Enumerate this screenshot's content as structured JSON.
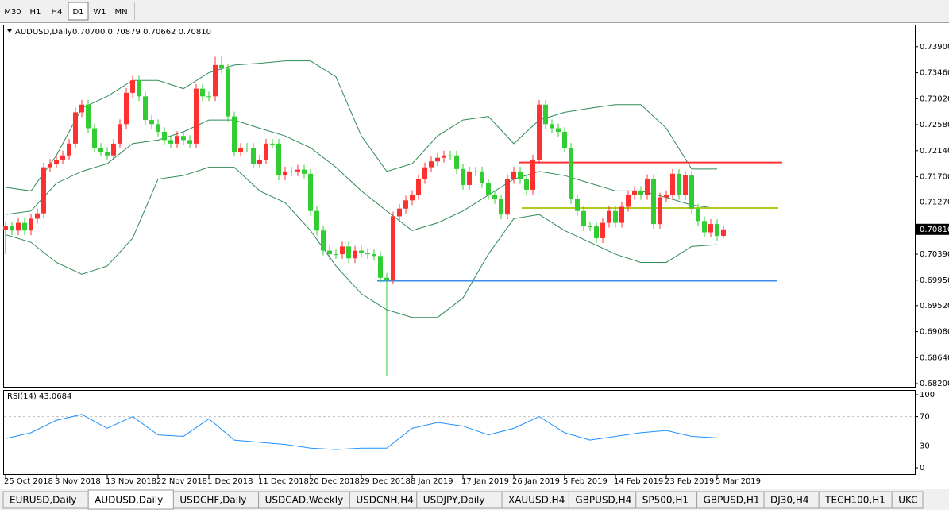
{
  "toolbar": {
    "timeframes": [
      "M30",
      "H1",
      "H4",
      "D1",
      "W1",
      "MN"
    ],
    "active_timeframe": 3
  },
  "chart_data": {
    "type": "candlestick",
    "symbol": "AUDUSD,Daily",
    "ohlc_text": "0.70700 0.70879 0.70662 0.70810",
    "bull_color": "#ff3030",
    "bear_color": "#32cd32",
    "open": [
      0.708,
      0.7086,
      0.7079,
      0.7092,
      0.7079,
      0.7099,
      0.7108,
      0.7186,
      0.7192,
      0.7199,
      0.7206,
      0.7226,
      0.7279,
      0.7292,
      0.7252,
      0.7219,
      0.7212,
      0.7206,
      0.7226,
      0.7259,
      0.7312,
      0.7333,
      0.7306,
      0.7266,
      0.7259,
      0.7246,
      0.7232,
      0.7226,
      0.7239,
      0.7232,
      0.7226,
      0.7319,
      0.7306,
      0.7306,
      0.7359,
      0.7353,
      0.7272,
      0.7212,
      0.7219,
      0.7219,
      0.7192,
      0.7199,
      0.7226,
      0.7226,
      0.7172,
      0.7179,
      0.7179,
      0.7182,
      0.7175,
      0.7112,
      0.7079,
      0.7045,
      0.7039,
      0.7039,
      0.7052,
      0.7032,
      0.7045,
      0.7041,
      0.7039,
      0.7036,
      0.6999,
      0.6996,
      0.7103,
      0.7116,
      0.713,
      0.7139,
      0.7166,
      0.7186,
      0.7196,
      0.7202,
      0.7206,
      0.7206,
      0.7183,
      0.7156,
      0.7179,
      0.7179,
      0.7159,
      0.7139,
      0.7132,
      0.7106,
      0.7166,
      0.7179,
      0.7166,
      0.7148,
      0.7199,
      0.7292,
      0.7259,
      0.7252,
      0.7246,
      0.7219,
      0.7132,
      0.7112,
      0.7086,
      0.7086,
      0.7066,
      0.7092,
      0.7112,
      0.7092,
      0.7119,
      0.7139,
      0.7146,
      0.7139,
      0.7166,
      0.709,
      0.7135,
      0.7139,
      0.7175,
      0.7139,
      0.7172,
      0.7116,
      0.7095,
      0.7076,
      0.709,
      0.707
    ],
    "high": [
      0.7094,
      0.7094,
      0.71,
      0.71,
      0.7107,
      0.7116,
      0.7194,
      0.72,
      0.7207,
      0.7214,
      0.7234,
      0.7287,
      0.73,
      0.73,
      0.726,
      0.7227,
      0.722,
      0.7234,
      0.7267,
      0.732,
      0.7341,
      0.7341,
      0.7314,
      0.7274,
      0.7267,
      0.7254,
      0.724,
      0.7247,
      0.7247,
      0.724,
      0.7327,
      0.7327,
      0.7314,
      0.7373,
      0.7373,
      0.7361,
      0.728,
      0.7227,
      0.7227,
      0.7227,
      0.7207,
      0.7234,
      0.7234,
      0.7234,
      0.7187,
      0.7187,
      0.719,
      0.719,
      0.7183,
      0.712,
      0.7087,
      0.7053,
      0.7047,
      0.706,
      0.706,
      0.7053,
      0.7053,
      0.7049,
      0.7047,
      0.7044,
      0.7007,
      0.7111,
      0.7124,
      0.7138,
      0.7147,
      0.7174,
      0.7194,
      0.7204,
      0.721,
      0.7214,
      0.7214,
      0.7214,
      0.7191,
      0.7187,
      0.7187,
      0.7187,
      0.7167,
      0.7147,
      0.714,
      0.7174,
      0.7187,
      0.7187,
      0.7174,
      0.7207,
      0.73,
      0.73,
      0.7267,
      0.726,
      0.7254,
      0.7227,
      0.714,
      0.712,
      0.7094,
      0.7094,
      0.71,
      0.712,
      0.712,
      0.7127,
      0.7147,
      0.7154,
      0.7154,
      0.7174,
      0.7174,
      0.7143,
      0.7147,
      0.7183,
      0.7183,
      0.718,
      0.718,
      0.7124,
      0.7103,
      0.7098,
      0.7098,
      0.7088
    ],
    "low": [
      0.7039,
      0.7071,
      0.7071,
      0.7071,
      0.7071,
      0.7091,
      0.71,
      0.7178,
      0.7184,
      0.7191,
      0.7198,
      0.7218,
      0.7271,
      0.7244,
      0.7211,
      0.7204,
      0.7198,
      0.7198,
      0.7218,
      0.7251,
      0.7304,
      0.7298,
      0.7258,
      0.7251,
      0.7238,
      0.7224,
      0.7218,
      0.7218,
      0.7224,
      0.7218,
      0.7218,
      0.7298,
      0.7298,
      0.7298,
      0.7345,
      0.7264,
      0.7204,
      0.7204,
      0.7211,
      0.7184,
      0.7184,
      0.7191,
      0.7218,
      0.7164,
      0.7164,
      0.7171,
      0.7171,
      0.7167,
      0.7104,
      0.7071,
      0.7037,
      0.7031,
      0.7031,
      0.7031,
      0.7024,
      0.7024,
      0.7033,
      0.7031,
      0.7028,
      0.6991,
      0.6832,
      0.6988,
      0.7095,
      0.7108,
      0.7122,
      0.7131,
      0.7158,
      0.7178,
      0.7188,
      0.7194,
      0.7198,
      0.7175,
      0.7148,
      0.7148,
      0.7171,
      0.7151,
      0.7131,
      0.7124,
      0.7098,
      0.7098,
      0.7158,
      0.7158,
      0.714,
      0.714,
      0.7191,
      0.7251,
      0.7244,
      0.7238,
      0.7211,
      0.7124,
      0.7104,
      0.7078,
      0.7078,
      0.7058,
      0.7058,
      0.7084,
      0.7084,
      0.7084,
      0.7111,
      0.7131,
      0.7131,
      0.7131,
      0.7082,
      0.7082,
      0.7127,
      0.7131,
      0.7131,
      0.7131,
      0.7108,
      0.7087,
      0.7068,
      0.7068,
      0.7062,
      0.7066
    ],
    "close": [
      0.7086,
      0.7079,
      0.7092,
      0.7079,
      0.7099,
      0.7108,
      0.7186,
      0.7192,
      0.7199,
      0.7206,
      0.7226,
      0.7279,
      0.7292,
      0.7252,
      0.7219,
      0.7212,
      0.7206,
      0.7226,
      0.7259,
      0.7312,
      0.7333,
      0.7306,
      0.7266,
      0.7259,
      0.7246,
      0.7232,
      0.7226,
      0.7239,
      0.7232,
      0.7226,
      0.7319,
      0.7306,
      0.7306,
      0.7359,
      0.7353,
      0.7272,
      0.7212,
      0.7219,
      0.7219,
      0.7192,
      0.7199,
      0.7226,
      0.7226,
      0.7172,
      0.7179,
      0.7179,
      0.7182,
      0.7175,
      0.7112,
      0.7079,
      0.7045,
      0.7039,
      0.7039,
      0.7052,
      0.7032,
      0.7045,
      0.7041,
      0.7039,
      0.7036,
      0.6999,
      0.6996,
      0.7103,
      0.7116,
      0.713,
      0.7139,
      0.7166,
      0.7186,
      0.7196,
      0.7202,
      0.7206,
      0.7206,
      0.7183,
      0.7156,
      0.7179,
      0.7179,
      0.7159,
      0.7139,
      0.7132,
      0.7106,
      0.7166,
      0.7179,
      0.7166,
      0.7148,
      0.7199,
      0.7292,
      0.7259,
      0.7252,
      0.7246,
      0.7219,
      0.7132,
      0.7112,
      0.7086,
      0.7086,
      0.7066,
      0.7092,
      0.7112,
      0.7092,
      0.7119,
      0.7139,
      0.7146,
      0.7139,
      0.7166,
      0.709,
      0.7135,
      0.7139,
      0.7175,
      0.7139,
      0.7172,
      0.7116,
      0.7095,
      0.7076,
      0.709,
      0.707,
      0.7081
    ],
    "bollinger": {
      "color": "#2e8b57",
      "x": [
        0,
        4,
        8,
        12,
        16,
        20,
        24,
        28,
        32,
        36,
        40,
        44,
        48,
        52,
        56,
        60,
        64,
        68,
        72,
        76,
        80,
        84,
        88,
        92,
        96,
        100,
        104,
        108,
        112
      ],
      "upper": [
        0.7152,
        0.7146,
        0.7206,
        0.7286,
        0.7306,
        0.7333,
        0.7333,
        0.7319,
        0.7346,
        0.7359,
        0.7362,
        0.7366,
        0.7366,
        0.7339,
        0.7239,
        0.7179,
        0.7192,
        0.7239,
        0.7266,
        0.7272,
        0.7226,
        0.7266,
        0.7279,
        0.7286,
        0.7292,
        0.7292,
        0.7252,
        0.7183,
        0.7183
      ],
      "middle": [
        0.7106,
        0.7112,
        0.7159,
        0.7179,
        0.7192,
        0.7226,
        0.7232,
        0.7246,
        0.7266,
        0.7266,
        0.7252,
        0.7239,
        0.7219,
        0.7186,
        0.7146,
        0.7112,
        0.7079,
        0.7092,
        0.7112,
        0.7139,
        0.7166,
        0.7179,
        0.7172,
        0.7159,
        0.7146,
        0.7146,
        0.7135,
        0.7122,
        0.7116
      ],
      "lower": [
        0.7072,
        0.7059,
        0.7025,
        0.7005,
        0.7019,
        0.7066,
        0.7166,
        0.7172,
        0.7186,
        0.7186,
        0.7146,
        0.7126,
        0.7079,
        0.7019,
        0.6972,
        0.6945,
        0.6932,
        0.6932,
        0.6965,
        0.7039,
        0.7099,
        0.7106,
        0.7079,
        0.7059,
        0.7039,
        0.7025,
        0.7025,
        0.7052,
        0.7055
      ]
    },
    "levels": [
      {
        "value": 0.7194,
        "color": "#ff3333"
      },
      {
        "value": 0.7117,
        "color": "#b5c820"
      },
      {
        "value": 0.6994,
        "color": "#3a8ee6"
      }
    ],
    "ylim": [
      0.68147,
      0.7426
    ],
    "yticks": [
      {
        "value": 0.739,
        "label": "0.73900"
      },
      {
        "value": 0.7346,
        "label": "0.73460"
      },
      {
        "value": 0.7302,
        "label": "0.73020"
      },
      {
        "value": 0.7258,
        "label": "0.72580"
      },
      {
        "value": 0.7214,
        "label": "0.72140"
      },
      {
        "value": 0.717,
        "label": "0.71700"
      },
      {
        "value": 0.7127,
        "label": "0.71270"
      },
      {
        "value": 0.7039,
        "label": "0.70390"
      },
      {
        "value": 0.6995,
        "label": "0.69950"
      },
      {
        "value": 0.6952,
        "label": "0.69520"
      },
      {
        "value": 0.6908,
        "label": "0.69080"
      },
      {
        "value": 0.6864,
        "label": "0.68640"
      },
      {
        "value": 0.682,
        "label": "0.68200"
      }
    ],
    "current_price": {
      "value": 0.7081,
      "label": "0.70810"
    },
    "xticks": [
      {
        "value": 0,
        "label": "25 Oct 2018"
      },
      {
        "value": 8,
        "label": "3 Nov 2018"
      },
      {
        "value": 16,
        "label": "13 Nov 2018"
      },
      {
        "value": 24,
        "label": "22 Nov 2018"
      },
      {
        "value": 32,
        "label": "1 Dec 2018"
      },
      {
        "value": 40,
        "label": "11 Dec 2018"
      },
      {
        "value": 48,
        "label": "20 Dec 2018"
      },
      {
        "value": 56,
        "label": "29 Dec 2018"
      },
      {
        "value": 64,
        "label": "8 Jan 2019"
      },
      {
        "value": 72,
        "label": "17 Jan 2019"
      },
      {
        "value": 80,
        "label": "26 Jan 2019"
      },
      {
        "value": 88,
        "label": "5 Feb 2019"
      },
      {
        "value": 96,
        "label": "14 Feb 2019"
      },
      {
        "value": 104,
        "label": "23 Feb 2019"
      },
      {
        "value": 112,
        "label": "5 Mar 2019"
      }
    ],
    "rsi": {
      "title": "RSI(14) 43.0684",
      "color": "#1e90ff",
      "x": [
        0,
        4,
        8,
        12,
        16,
        20,
        24,
        28,
        32,
        36,
        40,
        44,
        48,
        52,
        56,
        60,
        64,
        68,
        72,
        76,
        80,
        84,
        88,
        92,
        96,
        100,
        104,
        108,
        112
      ],
      "values": [
        40,
        48,
        65,
        73,
        54,
        70,
        45,
        43,
        67,
        38,
        35,
        32,
        27,
        25,
        27,
        27,
        54,
        62,
        57,
        45,
        54,
        70,
        48,
        38,
        43,
        48,
        51,
        43,
        41
      ],
      "ylim": [
        -8.6,
        105.4
      ],
      "yticks": [
        100,
        70,
        30,
        0
      ],
      "levels": [
        70,
        30
      ]
    }
  },
  "tabs": {
    "items": [
      "EURUSD,Daily",
      "AUDUSD,Daily",
      "USDCHF,Daily",
      "USDCAD,Weekly",
      "USDCNH,H4",
      "USDJPY,Daily",
      "XAUUSD,H4",
      "GBPUSD,H4",
      "SP500,H1",
      "GBPUSD,H1",
      "DJ30,H4",
      "TECH100,H1",
      "UKC"
    ],
    "active": 1
  }
}
